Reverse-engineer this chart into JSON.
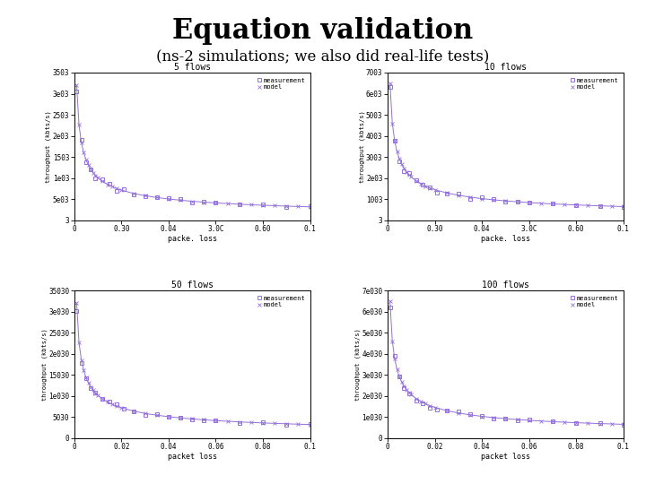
{
  "title": "Equation validation",
  "subtitle": "(ns-2 simulations; we also did real-life tests)",
  "title_fontsize": 22,
  "subtitle_fontsize": 12,
  "color": "#9370DB",
  "bg_color": "#ffffff",
  "subplots": [
    {
      "n": 5,
      "title": "5 flows",
      "ylim": [
        3,
        3500
      ],
      "yticks": [
        3,
        500,
        1000,
        1500,
        2000,
        2500,
        3000,
        3500
      ],
      "ytick_labels": [
        "3",
        "5e03",
        "1e03",
        "1503",
        "2e03",
        "2503",
        "3e03",
        "3503"
      ],
      "xtick_labels": [
        "0",
        "0.30",
        "0.04",
        "3.0C",
        "0.60",
        "0.1"
      ],
      "xlabel": "packe. loss"
    },
    {
      "n": 10,
      "title": "10 flows",
      "ylim": [
        3,
        7000
      ],
      "yticks": [
        3,
        1000,
        2000,
        3000,
        4000,
        5000,
        6000,
        7000
      ],
      "ytick_labels": [
        "3",
        "1003",
        "2e03",
        "3003",
        "4003",
        "5003",
        "6e03",
        "7003"
      ],
      "xtick_labels": [
        "0",
        "0.30",
        "0.04",
        "3.0C",
        "0.60",
        "0.1"
      ],
      "xlabel": "packe. loss"
    },
    {
      "n": 50,
      "title": "50 flows",
      "ylim": [
        0,
        35000
      ],
      "yticks": [
        0,
        5000,
        10000,
        15000,
        20000,
        25000,
        30000,
        35000
      ],
      "ytick_labels": [
        "0",
        "5030",
        "1e030",
        "15030",
        "2e030",
        "25030",
        "3e030",
        "35030"
      ],
      "xtick_labels": [
        "0",
        "0.02",
        "0.04",
        "0.06",
        "0.08",
        "0.1"
      ],
      "xlabel": "packet loss"
    },
    {
      "n": 100,
      "title": "100 flows",
      "ylim": [
        0,
        70000
      ],
      "yticks": [
        0,
        10000,
        20000,
        30000,
        40000,
        50000,
        60000,
        70000
      ],
      "ytick_labels": [
        "0",
        "1e030",
        "2e030",
        "3e030",
        "4e030",
        "5e030",
        "6e030",
        "7e030"
      ],
      "xtick_labels": [
        "0",
        "0.02",
        "0.04",
        "0.06",
        "0.08",
        "0.1"
      ],
      "xlabel": "packet loss"
    }
  ],
  "model_loss": [
    0.001,
    0.002,
    0.003,
    0.004,
    0.005,
    0.006,
    0.007,
    0.008,
    0.009,
    0.01,
    0.012,
    0.014,
    0.016,
    0.018,
    0.02,
    0.025,
    0.03,
    0.035,
    0.04,
    0.045,
    0.05,
    0.055,
    0.06,
    0.065,
    0.07,
    0.075,
    0.08,
    0.085,
    0.09,
    0.095,
    0.1
  ],
  "meas_loss": [
    0.001,
    0.003,
    0.005,
    0.007,
    0.009,
    0.012,
    0.015,
    0.018,
    0.021,
    0.025,
    0.03,
    0.035,
    0.04,
    0.045,
    0.05,
    0.055,
    0.06,
    0.07,
    0.08,
    0.09,
    0.1
  ],
  "base_throughput_5": 3200,
  "base_throughput_10": 6500,
  "base_throughput_50": 32000,
  "base_throughput_100": 65000
}
